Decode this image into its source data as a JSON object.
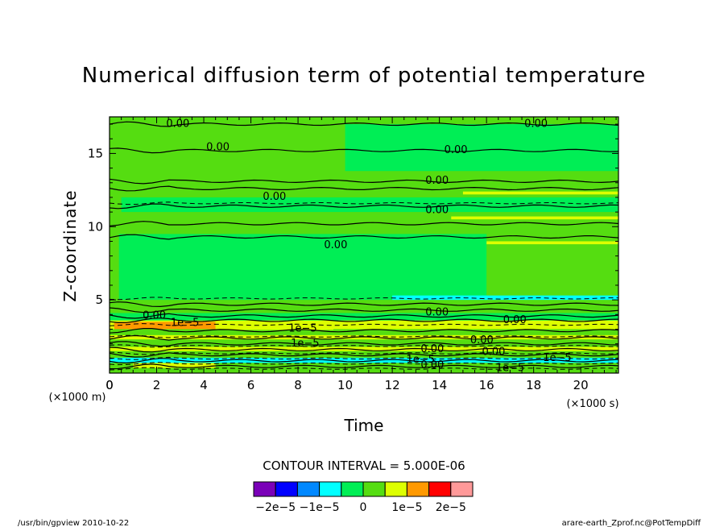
{
  "chart_data": {
    "type": "heatmap",
    "title": "Numerical diffusion term of potential temperature",
    "xlabel": "Time",
    "ylabel": "Z-coordinate",
    "x_unit": "(×1000 s)",
    "y_unit": "(×1000 m)",
    "xlim": [
      0,
      21.6
    ],
    "ylim": [
      0,
      17.5
    ],
    "x_ticks": [
      0,
      2,
      4,
      6,
      8,
      10,
      12,
      14,
      16,
      18,
      20
    ],
    "y_ticks": [
      5,
      10,
      15
    ],
    "contour_interval_label": "CONTOUR INTERVAL = 5.000E-06",
    "colorbar": {
      "colors": [
        "#7a00b8",
        "#0000ff",
        "#0088ff",
        "#00ffff",
        "#00ee55",
        "#55dd11",
        "#ddff00",
        "#ff9900",
        "#ff0000",
        "#ff9999"
      ],
      "tick_labels": [
        "−2e−5",
        "−1e−5",
        "0",
        "1e−5",
        "2e−5"
      ],
      "tick_values": [
        -2e-05,
        -1e-05,
        0,
        1e-05,
        2e-05
      ]
    },
    "bands": [
      {
        "z0": 0,
        "z1": 0.7,
        "level": 3e-06,
        "color": "#55dd11"
      },
      {
        "z0": 0.35,
        "z1": 0.7,
        "level": 7e-06,
        "color": "#ddff00",
        "t0": 1.0,
        "t1": 4.5
      },
      {
        "z0": 0.7,
        "z1": 1.05,
        "level": -6e-06,
        "color": "#00ffff"
      },
      {
        "z0": 1.05,
        "z1": 1.5,
        "level": 3e-06,
        "color": "#55dd11"
      },
      {
        "z0": 1.5,
        "z1": 1.8,
        "level": 7e-06,
        "color": "#ddff00"
      },
      {
        "z0": 1.8,
        "z1": 2.3,
        "level": 2e-06,
        "color": "#55dd11"
      },
      {
        "z0": 2.3,
        "z1": 2.6,
        "level": 7e-06,
        "color": "#ddff00"
      },
      {
        "z0": 2.6,
        "z1": 3.0,
        "level": 3e-06,
        "color": "#55dd11"
      },
      {
        "z0": 3.0,
        "z1": 3.6,
        "level": 7e-06,
        "color": "#ddff00"
      },
      {
        "z0": 3.6,
        "z1": 4.1,
        "level": -2e-06,
        "color": "#00ee55"
      },
      {
        "z0": 4.1,
        "z1": 4.5,
        "level": 3e-06,
        "color": "#55dd11"
      },
      {
        "z0": 4.5,
        "z1": 17.5,
        "level": 1e-06,
        "color": "#55dd11"
      },
      {
        "z0": 8.8,
        "z1": 9.0,
        "level": 7e-06,
        "color": "#ddff00",
        "t0": 14.8,
        "t1": 21.6
      },
      {
        "z0": 10.5,
        "z1": 10.7,
        "level": 7e-06,
        "color": "#ddff00",
        "t0": 14.5,
        "t1": 21.6
      },
      {
        "z0": 12.2,
        "z1": 12.4,
        "level": 7e-06,
        "color": "#ddff00",
        "t0": 15.0,
        "t1": 21.6
      },
      {
        "z0": 5.0,
        "z1": 9.5,
        "level": -1e-06,
        "color": "#00ee55",
        "t0": 0.4,
        "t1": 16.0
      },
      {
        "z0": 11.0,
        "z1": 12.0,
        "level": -1e-06,
        "color": "#00ee55",
        "t0": 0.5,
        "t1": 21.6
      },
      {
        "z0": 13.8,
        "z1": 17.0,
        "level": -1e-06,
        "color": "#00ee55",
        "t0": 10.0,
        "t1": 21.6
      },
      {
        "z0": 5.0,
        "z1": 5.3,
        "level": -6e-06,
        "color": "#00ffff",
        "t0": 12.0,
        "t1": 21.6
      },
      {
        "z0": 3.15,
        "z1": 3.4,
        "level": 2.1e-05,
        "color": "#ff0000",
        "t0": 0.2,
        "t1": 2.5
      },
      {
        "z0": 3.0,
        "z1": 3.5,
        "level": 1.6e-05,
        "color": "#ff9900",
        "t0": 0.2,
        "t1": 4.5
      },
      {
        "z0": 2.95,
        "z1": 3.55,
        "level": 1.1e-05,
        "color": "#ddff00",
        "t0": 4.5,
        "t1": 9.5
      }
    ],
    "contour_labels": [
      {
        "text": "0.00",
        "t": 2.9,
        "z": 17.1
      },
      {
        "text": "0.00",
        "t": 18.1,
        "z": 17.1
      },
      {
        "text": "0.00",
        "t": 4.6,
        "z": 15.5
      },
      {
        "text": "0.00",
        "t": 14.7,
        "z": 15.3
      },
      {
        "text": "0.00",
        "t": 7.0,
        "z": 12.1
      },
      {
        "text": "0.00",
        "t": 13.9,
        "z": 13.2
      },
      {
        "text": "0.00",
        "t": 13.9,
        "z": 11.2
      },
      {
        "text": "0.00",
        "t": 9.6,
        "z": 8.8
      },
      {
        "text": "0.00",
        "t": 1.9,
        "z": 4.0
      },
      {
        "text": "0.00",
        "t": 13.9,
        "z": 4.2
      },
      {
        "text": "0.00",
        "t": 17.2,
        "z": 3.7
      },
      {
        "text": "1e−5",
        "t": 3.2,
        "z": 3.5
      },
      {
        "text": "1e−5",
        "t": 8.2,
        "z": 3.1
      },
      {
        "text": "1e−5",
        "t": 8.3,
        "z": 2.1
      },
      {
        "text": "0.00",
        "t": 15.8,
        "z": 2.3
      },
      {
        "text": "0.00",
        "t": 16.3,
        "z": 1.5
      },
      {
        "text": "0.00",
        "t": 13.7,
        "z": 1.7
      },
      {
        "text": "0.00",
        "t": 13.7,
        "z": 0.6
      },
      {
        "text": "1e−5",
        "t": 19.0,
        "z": 1.1
      },
      {
        "text": "1e−5",
        "t": 13.2,
        "z": 1.0
      },
      {
        "text": "1e−5",
        "t": 17.0,
        "z": 0.4
      }
    ],
    "contour_lines_z": [
      17.0,
      15.2,
      13.1,
      12.6,
      11.4,
      10.2,
      9.3,
      4.7,
      4.3,
      3.9,
      3.6,
      2.9,
      2.4,
      2.0,
      1.6,
      1.25,
      0.85,
      0.45
    ],
    "dashed_lines_z": [
      11.6,
      5.1,
      3.3,
      2.5,
      1.85,
      1.35,
      1.0,
      0.65,
      0.3
    ]
  },
  "footer": {
    "left": "/usr/bin/gpview  2010-10-22",
    "right": "arare-earth_Zprof.nc@PotTempDiff"
  }
}
